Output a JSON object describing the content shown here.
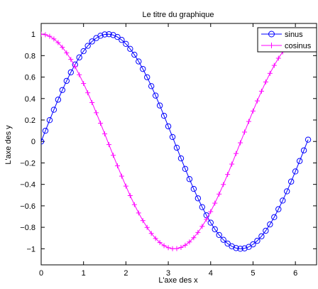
{
  "chart_data": {
    "type": "line",
    "title": "Le titre du graphique",
    "xlabel": "L'axe des x",
    "ylabel": "L'axe des y",
    "xlim": [
      0,
      6.5
    ],
    "ylim": [
      -1.15,
      1.1
    ],
    "x_ticks": [
      "0",
      "1",
      "2",
      "3",
      "4",
      "5",
      "6"
    ],
    "y_ticks": [
      "−1",
      "−0.8",
      "−0.6",
      "−0.4",
      "−0.2",
      "0",
      "0.2",
      "0.4",
      "0.6",
      "0.8",
      "1"
    ],
    "x_tick_values": [
      0,
      1,
      2,
      3,
      4,
      5,
      6
    ],
    "y_tick_values": [
      -1,
      -0.8,
      -0.6,
      -0.4,
      -0.2,
      0,
      0.2,
      0.4,
      0.6,
      0.8,
      1
    ],
    "grid": false,
    "legend": "top-right",
    "x": [
      0,
      0.1,
      0.2,
      0.3,
      0.4,
      0.5,
      0.6,
      0.7,
      0.8,
      0.9,
      1,
      1.1,
      1.2,
      1.3,
      1.4,
      1.5,
      1.6,
      1.7,
      1.8,
      1.9,
      2,
      2.1,
      2.2,
      2.3,
      2.4,
      2.5,
      2.6,
      2.7,
      2.8,
      2.9,
      3,
      3.1,
      3.2,
      3.3,
      3.4,
      3.5,
      3.6,
      3.7,
      3.8,
      3.9,
      4,
      4.1,
      4.2,
      4.3,
      4.4,
      4.5,
      4.6,
      4.7,
      4.8,
      4.9,
      5,
      5.1,
      5.2,
      5.3,
      5.4,
      5.5,
      5.6,
      5.7,
      5.8,
      5.9,
      6,
      6.1,
      6.2,
      6.3
    ],
    "series": [
      {
        "name": "sinus",
        "color": "#0000ff",
        "marker": "circle",
        "values": [
          0,
          0.0998,
          0.1987,
          0.2955,
          0.3894,
          0.4794,
          0.5646,
          0.6442,
          0.7174,
          0.7833,
          0.8415,
          0.8912,
          0.932,
          0.9636,
          0.9854,
          0.9975,
          0.9996,
          0.9917,
          0.9738,
          0.9463,
          0.9093,
          0.8632,
          0.8085,
          0.7457,
          0.6755,
          0.5985,
          0.5155,
          0.4274,
          0.335,
          0.2392,
          0.1411,
          0.0416,
          -0.0584,
          -0.1577,
          -0.2555,
          -0.3508,
          -0.4425,
          -0.5298,
          -0.6119,
          -0.6878,
          -0.7568,
          -0.8183,
          -0.8716,
          -0.9162,
          -0.9516,
          -0.9775,
          -0.9937,
          -0.9999,
          -0.9962,
          -0.9825,
          -0.9589,
          -0.9258,
          -0.8835,
          -0.8323,
          -0.7728,
          -0.7055,
          -0.6313,
          -0.5507,
          -0.4646,
          -0.3739,
          -0.2794,
          -0.1822,
          -0.0831,
          0.0168
        ]
      },
      {
        "name": "cosinus",
        "color": "#ff00ff",
        "marker": "plus",
        "values": [
          1,
          0.995,
          0.9801,
          0.9553,
          0.9211,
          0.8776,
          0.8253,
          0.7648,
          0.6967,
          0.6216,
          0.5403,
          0.4536,
          0.3624,
          0.2675,
          0.17,
          0.0707,
          -0.0292,
          -0.1288,
          -0.2272,
          -0.3233,
          -0.4161,
          -0.5048,
          -0.5885,
          -0.6663,
          -0.7374,
          -0.8011,
          -0.8569,
          -0.9041,
          -0.9422,
          -0.971,
          -0.99,
          -0.9991,
          -0.9983,
          -0.9875,
          -0.9668,
          -0.9365,
          -0.8968,
          -0.8481,
          -0.791,
          -0.7259,
          -0.6536,
          -0.5748,
          -0.4903,
          -0.4008,
          -0.3073,
          -0.2108,
          -0.1122,
          -0.0124,
          0.0875,
          0.1865,
          0.2837,
          0.378,
          0.4685,
          0.5544,
          0.6347,
          0.7087,
          0.7756,
          0.8347,
          0.8855,
          0.9275,
          0.9602,
          0.9833,
          0.9965,
          0.9999
        ]
      }
    ]
  }
}
